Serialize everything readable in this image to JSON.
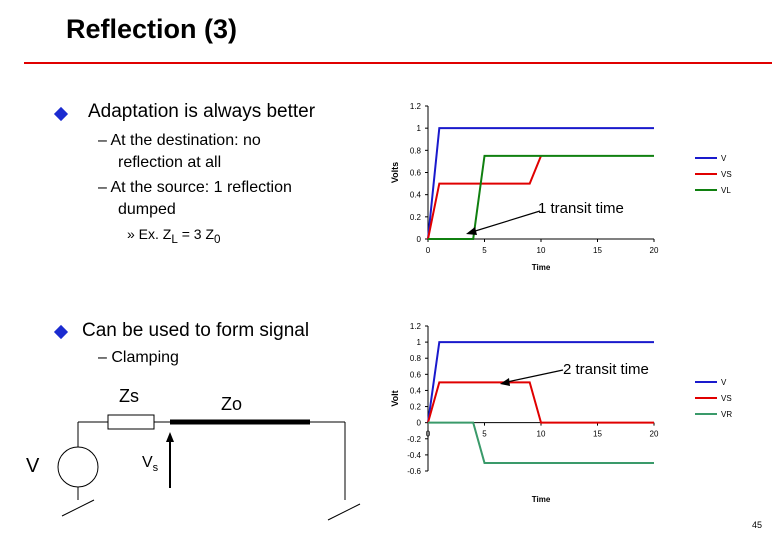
{
  "slide": {
    "title": "Reflection (3)",
    "page_number": "45"
  },
  "left": {
    "bullet1": "Adaptation is always better",
    "sub1a_line1": "– At the destination: no",
    "sub1a_line2": "reflection at all",
    "sub1b_line1": "– At the source: 1 reflection",
    "sub1b_line2": "dumped",
    "example_prefix": "» Ex. Z",
    "example_sub_l": "L",
    "example_mid": " = 3 Z",
    "example_sub_0": "0",
    "bullet2": "Can be used to form signal",
    "sub2a": "– Clamping"
  },
  "circuit": {
    "zs_label": "Zs",
    "zo_label": "Zo",
    "v_label": "V",
    "vs_label": "V",
    "vs_sub": "s"
  },
  "annotations": {
    "top": "1 transit time",
    "bottom": "2 transit time"
  },
  "chart_data": [
    {
      "type": "line",
      "xlabel": "Time",
      "ylabel": "Volts",
      "xlim": [
        0,
        20
      ],
      "ylim": [
        0,
        1.2
      ],
      "xticks": [
        0,
        5,
        10,
        15,
        20
      ],
      "yticks": [
        0,
        0.2,
        0.4,
        0.6,
        0.8,
        1,
        1.2
      ],
      "ytick_labels": [
        "0",
        "0.2",
        "0.4",
        "0.6",
        "0.8",
        "1",
        "1.2"
      ],
      "legend_position": "right",
      "series": [
        {
          "name": "V",
          "color": "#1a1acc",
          "x": [
            0,
            1,
            20
          ],
          "y": [
            0,
            1,
            1
          ]
        },
        {
          "name": "VS",
          "color": "#e00000",
          "x": [
            0,
            1,
            9,
            10
          ],
          "y": [
            0,
            0.5,
            0.5,
            0.75
          ]
        },
        {
          "name": "VL",
          "color": "#108010",
          "x": [
            0,
            4,
            5,
            20
          ],
          "y": [
            0,
            0,
            0.75,
            0.75
          ]
        }
      ]
    },
    {
      "type": "line",
      "xlabel": "Time",
      "ylabel": "Volt",
      "xlim": [
        0,
        20
      ],
      "ylim": [
        -0.6,
        1.2
      ],
      "xticks": [
        0,
        5,
        10,
        15,
        20
      ],
      "yticks": [
        -0.6,
        -0.4,
        -0.2,
        0,
        0.2,
        0.4,
        0.6,
        0.8,
        1,
        1.2
      ],
      "ytick_labels": [
        "-0.6",
        "-0.4",
        "-0.2",
        "0",
        "0.2",
        "0.4",
        "0.6",
        "0.8",
        "1",
        "1.2"
      ],
      "legend_position": "right",
      "series": [
        {
          "name": "V",
          "color": "#1a1acc",
          "x": [
            0,
            1,
            20
          ],
          "y": [
            0,
            1,
            1
          ]
        },
        {
          "name": "VS",
          "color": "#e00000",
          "x": [
            0,
            1,
            9,
            10,
            20
          ],
          "y": [
            0,
            0.5,
            0.5,
            0,
            0
          ]
        },
        {
          "name": "VR",
          "color": "#3a9a6a",
          "x": [
            0,
            4,
            5,
            20
          ],
          "y": [
            0,
            0,
            -0.5,
            -0.5
          ]
        }
      ]
    }
  ]
}
